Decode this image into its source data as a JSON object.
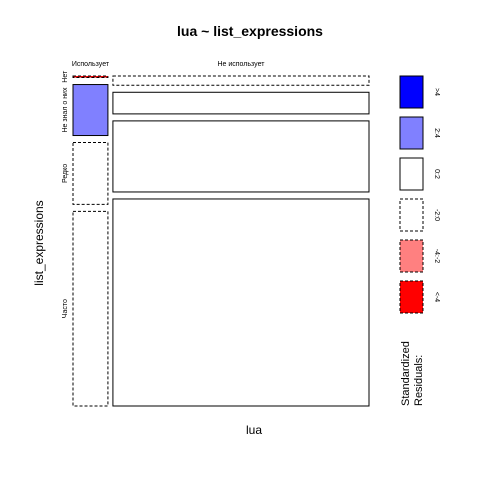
{
  "chart_data": {
    "type": "mosaic",
    "title": "lua ~ list_expressions",
    "xlabel": "lua",
    "ylabel": "list_expressions",
    "x_categories": [
      "Использует",
      "Не использует"
    ],
    "y_categories": [
      "Нет",
      "Не знал о них",
      "Редко",
      "Часто"
    ],
    "x_proportions": [
      0.12,
      0.88
    ],
    "cells": [
      {
        "x": "Использует",
        "y": "Нет",
        "proportion": 0.005,
        "residual_band": "<-4"
      },
      {
        "x": "Использует",
        "y": "Не знал о них",
        "proportion": 0.165,
        "residual_band": "2:4"
      },
      {
        "x": "Использует",
        "y": "Редко",
        "proportion": 0.2,
        "residual_band": "-2:0"
      },
      {
        "x": "Использует",
        "y": "Часто",
        "proportion": 0.63,
        "residual_band": "-2:0"
      },
      {
        "x": "Не использует",
        "y": "Нет",
        "proportion": 0.03,
        "residual_band": "-2:0"
      },
      {
        "x": "Не использует",
        "y": "Не знал о них",
        "proportion": 0.07,
        "residual_band": "0:2"
      },
      {
        "x": "Не использует",
        "y": "Редко",
        "proportion": 0.23,
        "residual_band": "0:2"
      },
      {
        "x": "Не использует",
        "y": "Часто",
        "proportion": 0.67,
        "residual_band": "0:2"
      }
    ],
    "legend": {
      "title": [
        "Standardized",
        "Residuals:"
      ],
      "placement": "right",
      "bands": [
        {
          "label": ">4",
          "key": ">4",
          "fill": "#0000ff",
          "dashed": false
        },
        {
          "label": "2:4",
          "key": "2:4",
          "fill": "#8080ff",
          "dashed": false
        },
        {
          "label": "0:2",
          "key": "0:2",
          "fill": "#ffffff",
          "dashed": false
        },
        {
          "label": "-2:0",
          "key": "-2:0",
          "fill": "#ffffff",
          "dashed": true
        },
        {
          "label": "-4:-2",
          "key": "-4:-2",
          "fill": "#ff8080",
          "dashed": true
        },
        {
          "label": "<-4",
          "key": "<-4",
          "fill": "#ff0000",
          "dashed": true
        }
      ]
    }
  }
}
